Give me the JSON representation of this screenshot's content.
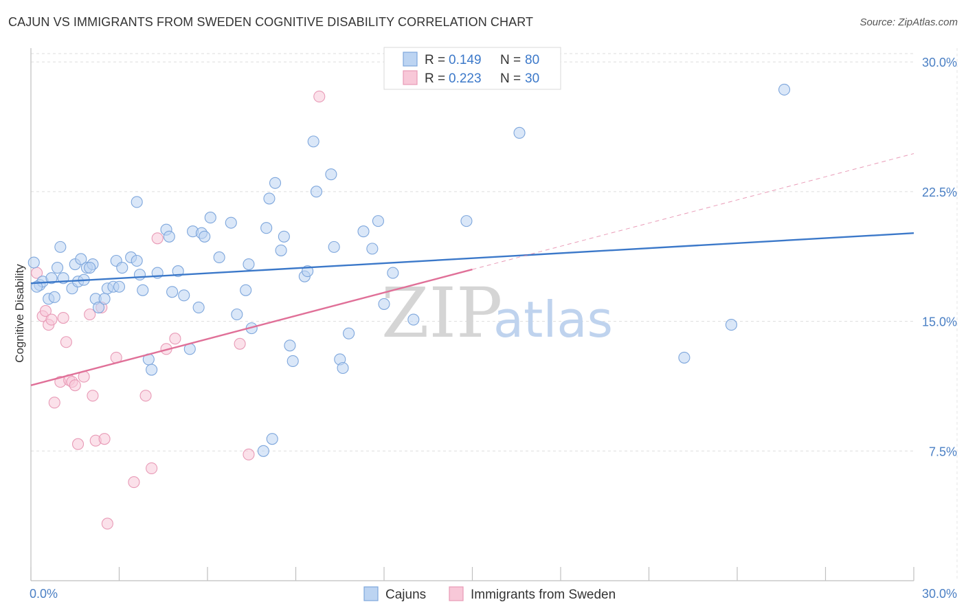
{
  "header": {
    "title": "CAJUN VS IMMIGRANTS FROM SWEDEN COGNITIVE DISABILITY CORRELATION CHART",
    "source": "Source: ZipAtlas.com"
  },
  "watermark": {
    "zip": "ZIP",
    "atlas": "atlas"
  },
  "legend": {
    "items": [
      {
        "r_label": "R =",
        "r_value": "0.149",
        "n_label": "N =",
        "n_value": "80"
      },
      {
        "r_label": "R =",
        "r_value": "0.223",
        "n_label": "N =",
        "n_value": "30"
      }
    ]
  },
  "bottom_legend": {
    "cajuns": "Cajuns",
    "sweden": "Immigrants from Sweden"
  },
  "chart_data": {
    "type": "scatter",
    "title": "CAJUN VS IMMIGRANTS FROM SWEDEN COGNITIVE DISABILITY CORRELATION CHART",
    "xlabel": "",
    "ylabel": "Cognitive Disability",
    "xlim": [
      0,
      30
    ],
    "ylim": [
      0,
      30.8
    ],
    "x_tick_labels": [
      "0.0%",
      "30.0%"
    ],
    "y_ticks": [
      7.5,
      15.0,
      22.5,
      30.0
    ],
    "y_tick_labels": [
      "7.5%",
      "15.0%",
      "22.5%",
      "30.0%"
    ],
    "grid": true,
    "legend_position": "top-center",
    "colors": {
      "cajuns": "#3b78c9",
      "cajuns_fill": "#bcd4f2",
      "sweden": "#e07098",
      "sweden_fill": "#f8c8d8"
    },
    "series": [
      {
        "name": "Cajuns",
        "r": 0.149,
        "n": 80,
        "trend": {
          "x": [
            0,
            30
          ],
          "y": [
            17.2,
            20.1
          ]
        },
        "points": [
          [
            0.1,
            18.4
          ],
          [
            0.3,
            17.1
          ],
          [
            0.4,
            17.3
          ],
          [
            0.6,
            16.3
          ],
          [
            0.7,
            17.5
          ],
          [
            0.8,
            16.4
          ],
          [
            0.9,
            18.1
          ],
          [
            1.0,
            19.3
          ],
          [
            1.1,
            17.5
          ],
          [
            1.4,
            16.9
          ],
          [
            1.5,
            18.3
          ],
          [
            1.6,
            17.3
          ],
          [
            1.7,
            18.6
          ],
          [
            1.8,
            17.4
          ],
          [
            1.9,
            18.1
          ],
          [
            2.1,
            18.3
          ],
          [
            2.2,
            16.3
          ],
          [
            2.3,
            15.8
          ],
          [
            2.5,
            16.3
          ],
          [
            2.6,
            16.9
          ],
          [
            2.8,
            17.0
          ],
          [
            2.9,
            18.5
          ],
          [
            3.0,
            17.0
          ],
          [
            3.1,
            18.1
          ],
          [
            3.4,
            18.7
          ],
          [
            3.6,
            18.5
          ],
          [
            3.7,
            17.7
          ],
          [
            3.8,
            16.8
          ],
          [
            4.0,
            12.8
          ],
          [
            4.1,
            12.2
          ],
          [
            4.3,
            17.8
          ],
          [
            4.6,
            20.3
          ],
          [
            4.7,
            19.9
          ],
          [
            4.8,
            16.7
          ],
          [
            5.0,
            17.9
          ],
          [
            5.2,
            16.5
          ],
          [
            5.4,
            13.4
          ],
          [
            5.5,
            20.2
          ],
          [
            5.7,
            15.8
          ],
          [
            5.8,
            20.1
          ],
          [
            5.9,
            19.9
          ],
          [
            6.1,
            21.0
          ],
          [
            6.4,
            18.7
          ],
          [
            6.8,
            20.7
          ],
          [
            7.0,
            15.4
          ],
          [
            7.3,
            16.8
          ],
          [
            7.4,
            18.3
          ],
          [
            7.5,
            14.6
          ],
          [
            3.6,
            21.9
          ],
          [
            8.0,
            20.4
          ],
          [
            8.1,
            22.1
          ],
          [
            8.3,
            23.0
          ],
          [
            8.5,
            19.1
          ],
          [
            8.6,
            19.9
          ],
          [
            8.8,
            13.6
          ],
          [
            8.9,
            12.7
          ],
          [
            9.3,
            17.6
          ],
          [
            9.4,
            17.9
          ],
          [
            9.6,
            25.4
          ],
          [
            9.7,
            22.5
          ],
          [
            10.2,
            23.5
          ],
          [
            10.3,
            19.3
          ],
          [
            10.5,
            12.8
          ],
          [
            10.6,
            12.3
          ],
          [
            10.8,
            14.3
          ],
          [
            11.3,
            20.2
          ],
          [
            11.6,
            19.2
          ],
          [
            11.8,
            20.8
          ],
          [
            12.0,
            16.0
          ],
          [
            12.3,
            17.8
          ],
          [
            13.0,
            15.1
          ],
          [
            14.8,
            20.8
          ],
          [
            16.6,
            25.9
          ],
          [
            8.2,
            8.2
          ],
          [
            7.9,
            7.5
          ],
          [
            22.2,
            12.9
          ],
          [
            23.8,
            14.8
          ],
          [
            25.6,
            28.4
          ],
          [
            0.2,
            17.0
          ],
          [
            2.0,
            18.1
          ]
        ]
      },
      {
        "name": "Immigrants from Sweden",
        "r": 0.223,
        "n": 30,
        "trend": {
          "x": [
            0,
            15.0
          ],
          "y": [
            11.3,
            18.0
          ]
        },
        "trend_dashed": {
          "x": [
            15.0,
            30
          ],
          "y": [
            18.0,
            24.7
          ]
        },
        "points": [
          [
            0.2,
            17.8
          ],
          [
            0.4,
            15.3
          ],
          [
            0.5,
            15.6
          ],
          [
            0.6,
            14.8
          ],
          [
            0.7,
            15.1
          ],
          [
            0.8,
            10.3
          ],
          [
            1.0,
            11.5
          ],
          [
            1.2,
            13.8
          ],
          [
            1.3,
            11.6
          ],
          [
            1.4,
            11.5
          ],
          [
            1.5,
            11.3
          ],
          [
            1.6,
            7.9
          ],
          [
            1.8,
            11.8
          ],
          [
            2.0,
            15.4
          ],
          [
            2.1,
            10.7
          ],
          [
            2.2,
            8.1
          ],
          [
            2.4,
            15.8
          ],
          [
            2.5,
            8.2
          ],
          [
            2.6,
            3.3
          ],
          [
            2.9,
            12.9
          ],
          [
            3.5,
            5.7
          ],
          [
            3.9,
            10.7
          ],
          [
            4.1,
            6.5
          ],
          [
            4.3,
            19.8
          ],
          [
            4.6,
            13.4
          ],
          [
            4.9,
            14.0
          ],
          [
            7.1,
            13.7
          ],
          [
            7.4,
            7.3
          ],
          [
            9.8,
            28.0
          ],
          [
            1.1,
            15.2
          ]
        ]
      }
    ]
  }
}
